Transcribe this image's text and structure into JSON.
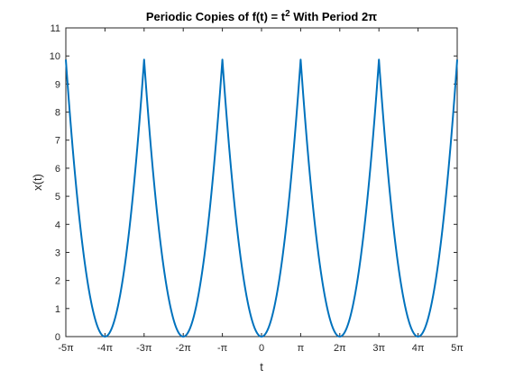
{
  "chart_data": {
    "type": "line",
    "title_parts": {
      "before": "Periodic Copies of f(t) = t",
      "superscript": "2",
      "after": " With Period 2π"
    },
    "xlabel": "t",
    "ylabel": "x(t)",
    "xlim_pi_multiples": [
      -5,
      5
    ],
    "ylim": [
      0,
      11
    ],
    "xticks": [
      {
        "value_pi_multiple": -5,
        "label": "-5π"
      },
      {
        "value_pi_multiple": -4,
        "label": "-4π"
      },
      {
        "value_pi_multiple": -3,
        "label": "-3π"
      },
      {
        "value_pi_multiple": -2,
        "label": "-2π"
      },
      {
        "value_pi_multiple": -1,
        "label": "-π"
      },
      {
        "value_pi_multiple": 0,
        "label": "0"
      },
      {
        "value_pi_multiple": 1,
        "label": "π"
      },
      {
        "value_pi_multiple": 2,
        "label": "2π"
      },
      {
        "value_pi_multiple": 3,
        "label": "3π"
      },
      {
        "value_pi_multiple": 4,
        "label": "4π"
      },
      {
        "value_pi_multiple": 5,
        "label": "5π"
      }
    ],
    "yticks": [
      0,
      1,
      2,
      3,
      4,
      5,
      6,
      7,
      8,
      9,
      10,
      11
    ],
    "series": [
      {
        "function": "x(t) = (t - 2πk)^2 for t in [(2k-1)π, (2k+1)π]",
        "period_pi_multiple": 2,
        "peak_value": 9.87,
        "color": "#0072BD",
        "linewidth": 2
      }
    ],
    "grid": false,
    "legend": "none"
  },
  "colors": {
    "line": "#0072BD",
    "axes": "#262626",
    "background": "#ffffff"
  }
}
